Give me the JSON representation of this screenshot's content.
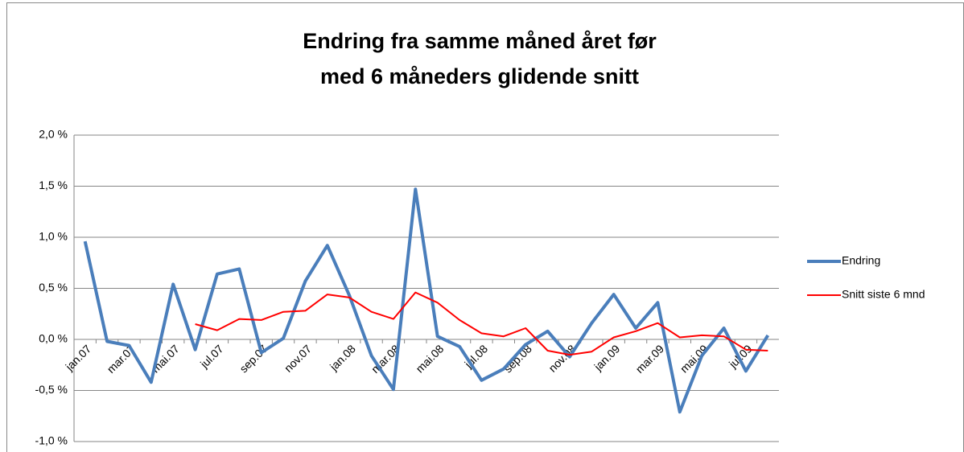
{
  "chart_data": {
    "type": "line",
    "title": [
      "Endring fra samme måned året før",
      "med 6 måneders  glidende snitt"
    ],
    "categories": [
      "jan.07",
      null,
      "mar.07",
      null,
      "mai.07",
      null,
      "jul.07",
      null,
      "sep.07",
      null,
      "nov.07",
      null,
      "jan.08",
      null,
      "mar.08",
      null,
      "mai.08",
      null,
      "jul.08",
      null,
      "sep.08",
      null,
      "nov.08",
      null,
      "jan.09",
      null,
      "mar.09",
      null,
      "mai.09",
      null,
      "jul.09",
      null
    ],
    "series": [
      {
        "name": "Endring",
        "color": "#4a7ebb",
        "width": 4,
        "values": [
          0.96,
          -0.02,
          -0.06,
          -0.42,
          0.54,
          -0.1,
          0.64,
          0.69,
          -0.13,
          0.01,
          0.57,
          0.92,
          0.43,
          -0.16,
          -0.49,
          1.47,
          0.03,
          -0.07,
          -0.4,
          -0.29,
          -0.05,
          0.08,
          -0.17,
          0.16,
          0.44,
          0.11,
          0.36,
          -0.71,
          -0.16,
          0.11,
          -0.31,
          0.04
        ]
      },
      {
        "name": "Snitt siste 6 mnd",
        "color": "#ff0000",
        "width": 2,
        "values": [
          null,
          null,
          null,
          null,
          null,
          0.15,
          0.09,
          0.2,
          0.19,
          0.27,
          0.28,
          0.44,
          0.41,
          0.27,
          0.2,
          0.46,
          0.36,
          0.19,
          0.06,
          0.03,
          0.11,
          -0.11,
          -0.15,
          -0.12,
          0.02,
          0.08,
          0.16,
          0.02,
          0.04,
          0.03,
          -0.1,
          -0.11
        ]
      }
    ],
    "ylim": [
      -1,
      2
    ],
    "yticks": [
      {
        "value": -1,
        "label": "-1,0 %"
      },
      {
        "value": -0.5,
        "label": "-0,5 %"
      },
      {
        "value": 0,
        "label": "0,0 %"
      },
      {
        "value": 0.5,
        "label": "0,5 %"
      },
      {
        "value": 1,
        "label": "1,0 %"
      },
      {
        "value": 1.5,
        "label": "1,5 %"
      },
      {
        "value": 2,
        "label": "2,0 %"
      }
    ],
    "grid": true,
    "legend": "right"
  }
}
